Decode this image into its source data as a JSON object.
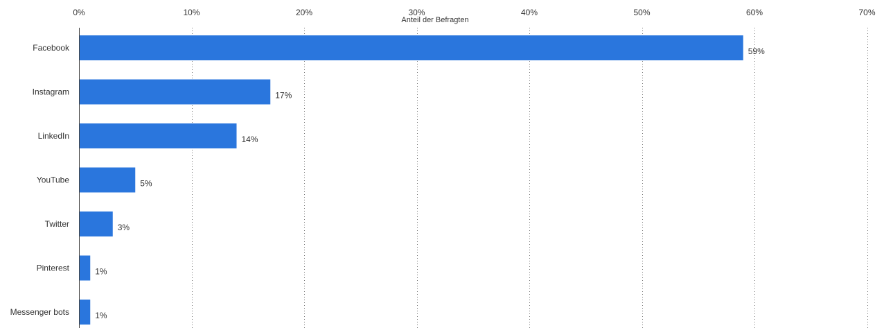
{
  "chart_data": {
    "type": "bar",
    "orientation": "horizontal",
    "categories": [
      "Facebook",
      "Instagram",
      "LinkedIn",
      "YouTube",
      "Twitter",
      "Pinterest",
      "Messenger bots"
    ],
    "values": [
      59,
      17,
      14,
      5,
      3,
      1,
      1
    ],
    "value_labels": [
      "59%",
      "17%",
      "14%",
      "5%",
      "3%",
      "1%",
      "1%"
    ],
    "xlabel": "Anteil der Befragten",
    "xlim": [
      0,
      70
    ],
    "ticks": [
      0,
      10,
      20,
      30,
      40,
      50,
      60,
      70
    ],
    "tick_labels": [
      "0%",
      "10%",
      "20%",
      "30%",
      "40%",
      "50%",
      "60%",
      "70%"
    ],
    "x_axis_position": "top",
    "grid": "vertical dotted",
    "legend": "none",
    "bar_color": "#2a76dd"
  }
}
